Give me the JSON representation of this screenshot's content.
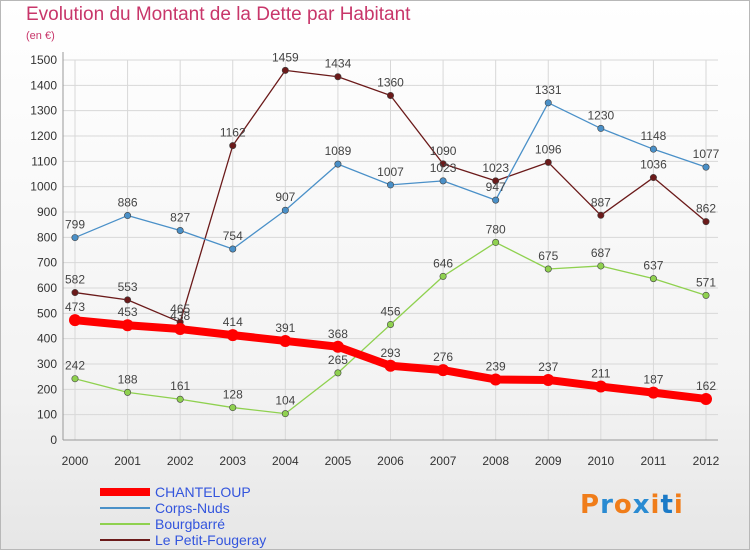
{
  "title": "Evolution du Montant de la Dette par Habitant",
  "subtitle": "(en €)",
  "logo": {
    "text": "Proxiti",
    "colors": [
      "#f07d1a",
      "#2a8bd2",
      "#f07d1a",
      "#2a8bd2",
      "#f07d1a",
      "#1b7ac7",
      "#f07d1a"
    ]
  },
  "chart_data": {
    "type": "line",
    "x": [
      "2000",
      "2001",
      "2002",
      "2003",
      "2004",
      "2005",
      "2006",
      "2007",
      "2008",
      "2009",
      "2010",
      "2011",
      "2012"
    ],
    "ylim": [
      0,
      1500
    ],
    "yticks": [
      "0",
      "100",
      "200",
      "300",
      "400",
      "500",
      "600",
      "700",
      "800",
      "900",
      "1000",
      "1100",
      "1200",
      "1300",
      "1400",
      "1500"
    ],
    "grid": true,
    "legend": "bottom-left",
    "series": [
      {
        "name": "Le Petit-Fougeray",
        "color": "#6b1a1a",
        "values": [
          582,
          553,
          465,
          1162,
          1459,
          1434,
          1360,
          1090,
          1023,
          1096,
          887,
          1036,
          862
        ],
        "labels": [
          "582",
          "553",
          "465",
          "1162",
          "1459",
          "1434",
          "1360",
          "1090",
          "1023",
          "1096",
          "887",
          "1036",
          "862"
        ]
      },
      {
        "name": "Corps-Nuds",
        "color": "#4a90c8",
        "values": [
          799,
          886,
          827,
          754,
          907,
          1089,
          1007,
          1023,
          947,
          1331,
          1230,
          1148,
          1077
        ],
        "labels": [
          "799",
          "886",
          "827",
          "754",
          "907",
          "1089",
          "1007",
          "1023",
          "947",
          "1331",
          "1230",
          "1148",
          "1077"
        ]
      },
      {
        "name": "Bourgbarré",
        "color": "#8fd14f",
        "values": [
          242,
          188,
          161,
          128,
          104,
          265,
          456,
          646,
          780,
          675,
          687,
          637,
          571
        ],
        "labels": [
          "242",
          "188",
          "161",
          "128",
          "104",
          "265",
          "456",
          "646",
          "780",
          "675",
          "687",
          "637",
          "571"
        ]
      },
      {
        "name": "CHANTELOUP",
        "color": "#ff0000",
        "values": [
          473,
          453,
          438,
          414,
          391,
          368,
          293,
          276,
          239,
          237,
          211,
          187,
          162
        ],
        "labels": [
          "473",
          "453",
          "438",
          "414",
          "391",
          "368",
          "293",
          "276",
          "239",
          "237",
          "211",
          "187",
          "162"
        ]
      }
    ],
    "legend_entries": [
      {
        "name": "CHANTELOUP",
        "color": "#ff0000",
        "text_color": "#3355dd"
      },
      {
        "name": "Corps-Nuds",
        "color": "#4a90c8",
        "text_color": "#3355dd"
      },
      {
        "name": "Bourgbarré",
        "color": "#8fd14f",
        "text_color": "#3355dd"
      },
      {
        "name": "Le Petit-Fougeray",
        "color": "#6b1a1a",
        "text_color": "#3355dd"
      }
    ]
  }
}
